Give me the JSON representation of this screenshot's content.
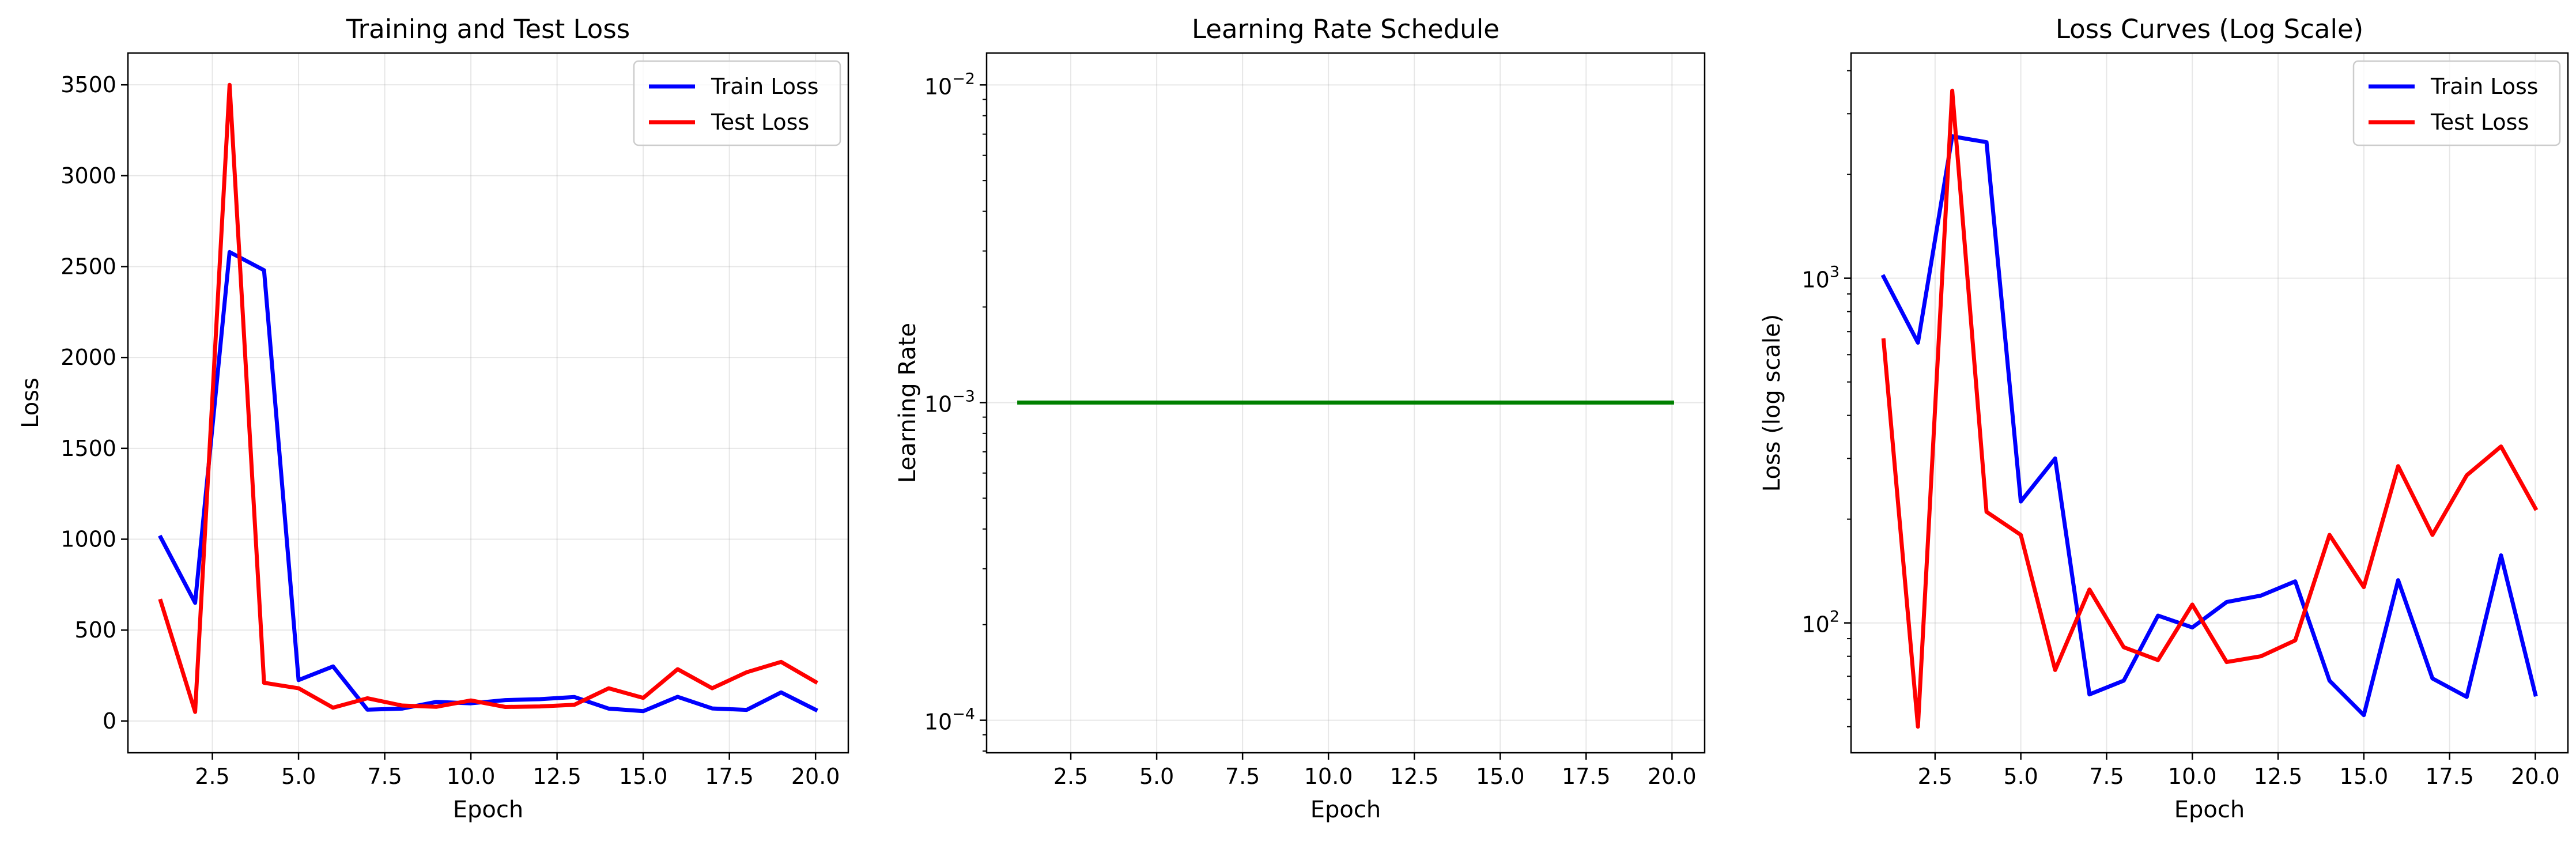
{
  "chart_data": [
    {
      "type": "line",
      "title": "Training and Test Loss",
      "xlabel": "Epoch",
      "ylabel": "Loss",
      "yscale": "linear",
      "xlim": [
        0.05,
        20.95
      ],
      "ylim": [
        -175,
        3675
      ],
      "xticks": [
        2.5,
        5.0,
        7.5,
        10.0,
        12.5,
        15.0,
        17.5,
        20.0
      ],
      "xtick_labels": [
        "2.5",
        "5.0",
        "7.5",
        "10.0",
        "12.5",
        "15.0",
        "17.5",
        "20.0"
      ],
      "yticks": [
        0,
        500,
        1000,
        1500,
        2000,
        2500,
        3000,
        3500
      ],
      "ytick_labels": [
        "0",
        "500",
        "1000",
        "1500",
        "2000",
        "2500",
        "3000",
        "3500"
      ],
      "grid": true,
      "legend": "upper right",
      "x": [
        1,
        2,
        3,
        4,
        5,
        6,
        7,
        8,
        9,
        10,
        11,
        12,
        13,
        14,
        15,
        16,
        17,
        18,
        19,
        20
      ],
      "series": [
        {
          "name": "Train Loss",
          "color": "#0000ff",
          "values": [
            1010,
            650,
            2580,
            2480,
            225,
            300,
            62,
            68,
            105,
            97,
            115,
            120,
            132,
            68,
            54,
            133,
            69,
            61,
            157,
            62
          ]
        },
        {
          "name": "Test Loss",
          "color": "#ff0000",
          "values": [
            660,
            50,
            3500,
            210,
            180,
            73,
            125,
            85,
            78,
            113,
            77,
            80,
            89,
            180,
            127,
            285,
            180,
            268,
            325,
            215
          ]
        }
      ]
    },
    {
      "type": "line",
      "title": "Learning Rate Schedule",
      "xlabel": "Epoch",
      "ylabel": "Learning Rate",
      "yscale": "log",
      "xlim": [
        0.05,
        20.95
      ],
      "ylim": [
        7.9e-05,
        0.0126
      ],
      "xticks": [
        2.5,
        5.0,
        7.5,
        10.0,
        12.5,
        15.0,
        17.5,
        20.0
      ],
      "xtick_labels": [
        "2.5",
        "5.0",
        "7.5",
        "10.0",
        "12.5",
        "15.0",
        "17.5",
        "20.0"
      ],
      "yticks": [
        0.0001,
        0.001,
        0.01
      ],
      "ytick_labels": [
        {
          "base": "10",
          "exp": "−4"
        },
        {
          "base": "10",
          "exp": "−3"
        },
        {
          "base": "10",
          "exp": "−2"
        }
      ],
      "grid": true,
      "x": [
        1,
        2,
        3,
        4,
        5,
        6,
        7,
        8,
        9,
        10,
        11,
        12,
        13,
        14,
        15,
        16,
        17,
        18,
        19,
        20
      ],
      "series": [
        {
          "color": "#008000",
          "values": [
            0.001,
            0.001,
            0.001,
            0.001,
            0.001,
            0.001,
            0.001,
            0.001,
            0.001,
            0.001,
            0.001,
            0.001,
            0.001,
            0.001,
            0.001,
            0.001,
            0.001,
            0.001,
            0.001,
            0.001
          ]
        }
      ]
    },
    {
      "type": "line",
      "title": "Loss Curves (Log Scale)",
      "xlabel": "Epoch",
      "ylabel": "Loss (log scale)",
      "yscale": "log",
      "xlim": [
        0.05,
        20.95
      ],
      "ylim": [
        42,
        4500
      ],
      "xticks": [
        2.5,
        5.0,
        7.5,
        10.0,
        12.5,
        15.0,
        17.5,
        20.0
      ],
      "xtick_labels": [
        "2.5",
        "5.0",
        "7.5",
        "10.0",
        "12.5",
        "15.0",
        "17.5",
        "20.0"
      ],
      "yticks": [
        100,
        1000
      ],
      "ytick_labels": [
        {
          "base": "10",
          "exp": "2"
        },
        {
          "base": "10",
          "exp": "3"
        }
      ],
      "grid": true,
      "legend": "upper right",
      "x": [
        1,
        2,
        3,
        4,
        5,
        6,
        7,
        8,
        9,
        10,
        11,
        12,
        13,
        14,
        15,
        16,
        17,
        18,
        19,
        20
      ],
      "series": [
        {
          "name": "Train Loss",
          "color": "#0000ff",
          "values": [
            1010,
            650,
            2580,
            2480,
            225,
            300,
            62,
            68,
            105,
            97,
            115,
            120,
            132,
            68,
            54,
            133,
            69,
            61,
            157,
            62
          ]
        },
        {
          "name": "Test Loss",
          "color": "#ff0000",
          "values": [
            660,
            50,
            3500,
            210,
            180,
            73,
            125,
            85,
            78,
            113,
            77,
            80,
            89,
            180,
            127,
            285,
            180,
            268,
            325,
            215
          ]
        }
      ]
    }
  ]
}
